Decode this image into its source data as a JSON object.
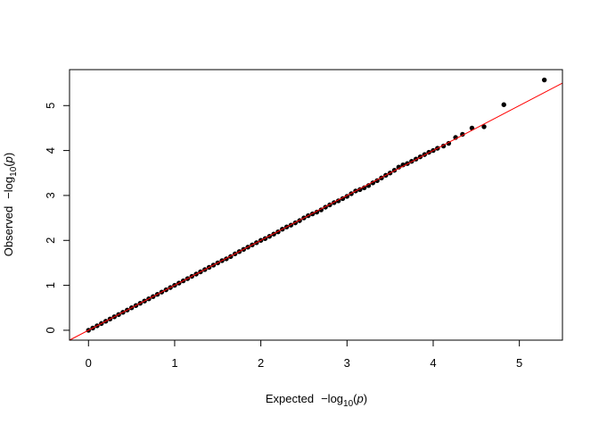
{
  "chart_data": {
    "type": "scatter",
    "title": "",
    "xlabel": {
      "prefix": "Expected",
      "func": "−log",
      "sub": "10",
      "open": "(",
      "arg": "p",
      "close": ")"
    },
    "ylabel": {
      "prefix": "Observed",
      "func": "−log",
      "sub": "10",
      "open": "(",
      "arg": "p",
      "close": ")"
    },
    "xlim": [
      -0.22,
      5.5
    ],
    "ylim": [
      -0.22,
      5.8
    ],
    "xticks": [
      "0",
      "1",
      "2",
      "3",
      "4",
      "5"
    ],
    "yticks": [
      "0",
      "1",
      "2",
      "3",
      "4",
      "5"
    ],
    "grid": false,
    "point_color": "#000000",
    "reference_line": {
      "type": "y=x",
      "color": "#ff0000"
    },
    "points": [
      [
        0.0,
        0.0
      ],
      [
        0.05,
        0.05
      ],
      [
        0.1,
        0.1
      ],
      [
        0.15,
        0.15
      ],
      [
        0.2,
        0.2
      ],
      [
        0.25,
        0.25
      ],
      [
        0.3,
        0.3
      ],
      [
        0.35,
        0.35
      ],
      [
        0.4,
        0.4
      ],
      [
        0.45,
        0.45
      ],
      [
        0.5,
        0.5
      ],
      [
        0.55,
        0.55
      ],
      [
        0.6,
        0.6
      ],
      [
        0.65,
        0.65
      ],
      [
        0.7,
        0.7
      ],
      [
        0.75,
        0.75
      ],
      [
        0.8,
        0.8
      ],
      [
        0.85,
        0.85
      ],
      [
        0.9,
        0.9
      ],
      [
        0.95,
        0.95
      ],
      [
        1.0,
        1.0
      ],
      [
        1.05,
        1.05
      ],
      [
        1.1,
        1.1
      ],
      [
        1.15,
        1.15
      ],
      [
        1.2,
        1.2
      ],
      [
        1.25,
        1.25
      ],
      [
        1.3,
        1.3
      ],
      [
        1.35,
        1.35
      ],
      [
        1.4,
        1.4
      ],
      [
        1.45,
        1.45
      ],
      [
        1.5,
        1.5
      ],
      [
        1.55,
        1.55
      ],
      [
        1.6,
        1.59
      ],
      [
        1.65,
        1.64
      ],
      [
        1.7,
        1.7
      ],
      [
        1.75,
        1.75
      ],
      [
        1.8,
        1.8
      ],
      [
        1.85,
        1.85
      ],
      [
        1.9,
        1.9
      ],
      [
        1.95,
        1.95
      ],
      [
        2.0,
        2.0
      ],
      [
        2.05,
        2.04
      ],
      [
        2.1,
        2.09
      ],
      [
        2.15,
        2.14
      ],
      [
        2.2,
        2.19
      ],
      [
        2.25,
        2.25
      ],
      [
        2.3,
        2.3
      ],
      [
        2.35,
        2.34
      ],
      [
        2.4,
        2.39
      ],
      [
        2.45,
        2.44
      ],
      [
        2.5,
        2.5
      ],
      [
        2.55,
        2.55
      ],
      [
        2.6,
        2.59
      ],
      [
        2.65,
        2.63
      ],
      [
        2.7,
        2.68
      ],
      [
        2.75,
        2.74
      ],
      [
        2.8,
        2.79
      ],
      [
        2.85,
        2.84
      ],
      [
        2.9,
        2.88
      ],
      [
        2.95,
        2.93
      ],
      [
        3.0,
        2.98
      ],
      [
        3.05,
        3.04
      ],
      [
        3.1,
        3.1
      ],
      [
        3.15,
        3.13
      ],
      [
        3.2,
        3.17
      ],
      [
        3.25,
        3.22
      ],
      [
        3.3,
        3.28
      ],
      [
        3.35,
        3.33
      ],
      [
        3.4,
        3.39
      ],
      [
        3.45,
        3.45
      ],
      [
        3.5,
        3.5
      ],
      [
        3.55,
        3.56
      ],
      [
        3.6,
        3.63
      ],
      [
        3.65,
        3.68
      ],
      [
        3.7,
        3.71
      ],
      [
        3.75,
        3.76
      ],
      [
        3.8,
        3.81
      ],
      [
        3.85,
        3.86
      ],
      [
        3.9,
        3.91
      ],
      [
        3.95,
        3.96
      ],
      [
        4.0,
        4.0
      ],
      [
        4.05,
        4.05
      ],
      [
        4.12,
        4.1
      ],
      [
        4.18,
        4.16
      ],
      [
        4.26,
        4.29
      ],
      [
        4.34,
        4.36
      ],
      [
        4.45,
        4.5
      ],
      [
        4.59,
        4.53
      ],
      [
        4.82,
        5.02
      ],
      [
        5.29,
        5.57
      ]
    ]
  }
}
